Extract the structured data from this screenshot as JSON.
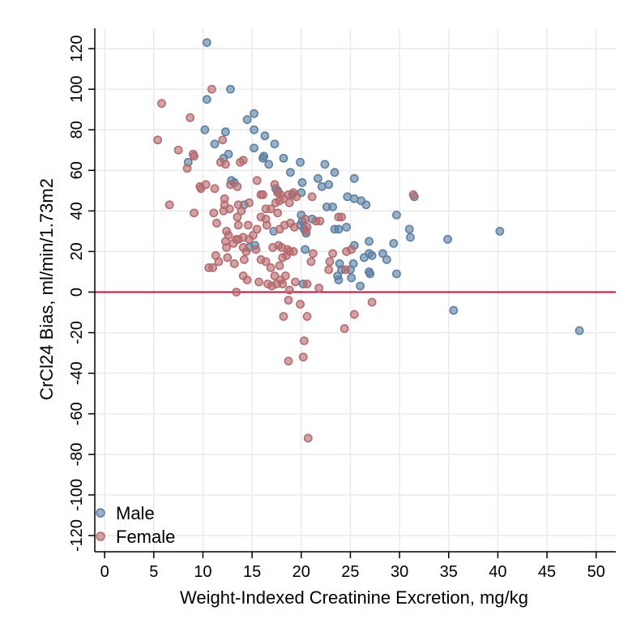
{
  "chart_data": {
    "type": "scatter",
    "xlabel": "Weight-Indexed Creatinine Excretion, mg/kg",
    "ylabel": "CrCl24 Bias, ml/min/1.73m2",
    "xlim": [
      -1,
      52
    ],
    "ylim": [
      -128,
      130
    ],
    "x_ticks": [
      0,
      5,
      10,
      15,
      20,
      25,
      30,
      35,
      40,
      45,
      50
    ],
    "y_ticks": [
      -120,
      -100,
      -80,
      -60,
      -40,
      -20,
      0,
      20,
      40,
      60,
      80,
      100,
      120
    ],
    "grid": true,
    "reference_line": {
      "y": 0,
      "color": "#c0143c"
    },
    "legend": {
      "placement": "bottom-left"
    },
    "series": [
      {
        "name": "Male",
        "color": "#5b7fa3",
        "points": [
          [
            10.4,
            123
          ],
          [
            12.8,
            100
          ],
          [
            10.4,
            95
          ],
          [
            15.2,
            88
          ],
          [
            14.5,
            85
          ],
          [
            15.2,
            80
          ],
          [
            10.2,
            80
          ],
          [
            12.3,
            79
          ],
          [
            16.3,
            77
          ],
          [
            11.2,
            73
          ],
          [
            17.3,
            73
          ],
          [
            15.2,
            71
          ],
          [
            16.2,
            67
          ],
          [
            16.1,
            66
          ],
          [
            12.6,
            68
          ],
          [
            12.1,
            66
          ],
          [
            18.2,
            66
          ],
          [
            8.5,
            64
          ],
          [
            16.7,
            63
          ],
          [
            19.9,
            64
          ],
          [
            22.4,
            63
          ],
          [
            23.4,
            59
          ],
          [
            18.9,
            59
          ],
          [
            12.9,
            55
          ],
          [
            21.7,
            56
          ],
          [
            25.4,
            56
          ],
          [
            13.2,
            54
          ],
          [
            20.1,
            54
          ],
          [
            22.1,
            52
          ],
          [
            22.8,
            53
          ],
          [
            17.4,
            51
          ],
          [
            17.6,
            50
          ],
          [
            19.1,
            48
          ],
          [
            20.0,
            49
          ],
          [
            24.7,
            47
          ],
          [
            25.4,
            46
          ],
          [
            26.1,
            45
          ],
          [
            26.6,
            43
          ],
          [
            22.6,
            42
          ],
          [
            23.2,
            42
          ],
          [
            29.7,
            38
          ],
          [
            20.0,
            38
          ],
          [
            20.1,
            35
          ],
          [
            21.1,
            36
          ],
          [
            23.8,
            31
          ],
          [
            23.4,
            31
          ],
          [
            31.0,
            31
          ],
          [
            19.9,
            33
          ],
          [
            20.3,
            31
          ],
          [
            31.1,
            27
          ],
          [
            34.9,
            26
          ],
          [
            40.2,
            30
          ],
          [
            24.6,
            32
          ],
          [
            25.4,
            23
          ],
          [
            26.9,
            25
          ],
          [
            29.4,
            24
          ],
          [
            20.4,
            21
          ],
          [
            14.7,
            22
          ],
          [
            15.3,
            23
          ],
          [
            26.4,
            17
          ],
          [
            26.9,
            19
          ],
          [
            28.3,
            19
          ],
          [
            28.7,
            16
          ],
          [
            27.2,
            18
          ],
          [
            23.9,
            14
          ],
          [
            25.3,
            14
          ],
          [
            26.9,
            10
          ],
          [
            24.1,
            11
          ],
          [
            25.0,
            11
          ],
          [
            23.7,
            8
          ],
          [
            23.8,
            6
          ],
          [
            25.1,
            7
          ],
          [
            26.0,
            3
          ],
          [
            27.0,
            9
          ],
          [
            29.7,
            9
          ],
          [
            20.2,
            4
          ],
          [
            35.5,
            -9
          ],
          [
            48.3,
            -19
          ],
          [
            31.5,
            47
          ],
          [
            14.2,
            43
          ],
          [
            17.2,
            30
          ],
          [
            20.5,
            29
          ]
        ]
      },
      {
        "name": "Female",
        "color": "#b56a6e",
        "points": [
          [
            5.8,
            93
          ],
          [
            10.9,
            100
          ],
          [
            5.4,
            75
          ],
          [
            8.7,
            86
          ],
          [
            7.5,
            70
          ],
          [
            12.0,
            75
          ],
          [
            9.1,
            67
          ],
          [
            9.0,
            68
          ],
          [
            8.4,
            61
          ],
          [
            11.8,
            64
          ],
          [
            12.3,
            63
          ],
          [
            13.8,
            64
          ],
          [
            14.1,
            65
          ],
          [
            15.5,
            55
          ],
          [
            9.7,
            52
          ],
          [
            10.3,
            53
          ],
          [
            9.8,
            51
          ],
          [
            11.2,
            51
          ],
          [
            12.8,
            53
          ],
          [
            13.5,
            52
          ],
          [
            17.3,
            53
          ],
          [
            17.6,
            49
          ],
          [
            17.9,
            48
          ],
          [
            18.7,
            48
          ],
          [
            19.2,
            49
          ],
          [
            19.5,
            47
          ],
          [
            21.1,
            47
          ],
          [
            31.4,
            48
          ],
          [
            15.9,
            48
          ],
          [
            16.1,
            48
          ],
          [
            12.2,
            46
          ],
          [
            14.7,
            44
          ],
          [
            12.2,
            43
          ],
          [
            6.6,
            43
          ],
          [
            12.1,
            40
          ],
          [
            12.7,
            41
          ],
          [
            13.6,
            43
          ],
          [
            13.9,
            40
          ],
          [
            16.4,
            41
          ],
          [
            16.9,
            41
          ],
          [
            17.4,
            44
          ],
          [
            17.8,
            45
          ],
          [
            18.2,
            46
          ],
          [
            18.8,
            44
          ],
          [
            11.1,
            39
          ],
          [
            9.1,
            39
          ],
          [
            13.5,
            37
          ],
          [
            15.9,
            37
          ],
          [
            16.4,
            36
          ],
          [
            17.6,
            39
          ],
          [
            21.5,
            35
          ],
          [
            21.9,
            35
          ],
          [
            23.8,
            37
          ],
          [
            24.1,
            37
          ],
          [
            20.4,
            36
          ],
          [
            11.4,
            34
          ],
          [
            13.6,
            33
          ],
          [
            14.6,
            33
          ],
          [
            16.5,
            33
          ],
          [
            17.8,
            31
          ],
          [
            18.3,
            33
          ],
          [
            18.9,
            34
          ],
          [
            19.3,
            32
          ],
          [
            12.4,
            30
          ],
          [
            12.6,
            28
          ],
          [
            13.4,
            26
          ],
          [
            14.1,
            27
          ],
          [
            15.1,
            28
          ],
          [
            15.5,
            31
          ],
          [
            20.6,
            32
          ],
          [
            20.5,
            30
          ],
          [
            12.3,
            25
          ],
          [
            13.1,
            24
          ],
          [
            13.6,
            26
          ],
          [
            14.7,
            26
          ],
          [
            12.4,
            22
          ],
          [
            14.1,
            22
          ],
          [
            14.4,
            20
          ],
          [
            15.4,
            21
          ],
          [
            17.1,
            22
          ],
          [
            17.7,
            23
          ],
          [
            18.0,
            22
          ],
          [
            18.6,
            21
          ],
          [
            18.8,
            20
          ],
          [
            19.2,
            20
          ],
          [
            21.2,
            19
          ],
          [
            23.2,
            19
          ],
          [
            24.6,
            20
          ],
          [
            25.1,
            21
          ],
          [
            11.3,
            18
          ],
          [
            11.6,
            15
          ],
          [
            12.5,
            17
          ],
          [
            14.2,
            16
          ],
          [
            15.9,
            16
          ],
          [
            16.4,
            15
          ],
          [
            18.1,
            17
          ],
          [
            18.5,
            18
          ],
          [
            16.9,
            12
          ],
          [
            17.8,
            13
          ],
          [
            21.0,
            15
          ],
          [
            22.9,
            15
          ],
          [
            10.6,
            12
          ],
          [
            11.0,
            12
          ],
          [
            13.2,
            14
          ],
          [
            18.4,
            8
          ],
          [
            17.3,
            8
          ],
          [
            14.1,
            8
          ],
          [
            14.5,
            6
          ],
          [
            15.7,
            5
          ],
          [
            17.0,
            3
          ],
          [
            17.5,
            4
          ],
          [
            17.9,
            6
          ],
          [
            16.6,
            4
          ],
          [
            18.1,
            4
          ],
          [
            19.4,
            5
          ],
          [
            20.6,
            4
          ],
          [
            21.8,
            2
          ],
          [
            22.8,
            11
          ],
          [
            24.5,
            11
          ],
          [
            13.4,
            0
          ],
          [
            18.8,
            1
          ],
          [
            18.7,
            -4
          ],
          [
            19.9,
            -6
          ],
          [
            20.6,
            -12
          ],
          [
            25.4,
            -11
          ],
          [
            27.2,
            -5
          ],
          [
            18.2,
            -12
          ],
          [
            24.4,
            -18
          ],
          [
            20.3,
            -24
          ],
          [
            20.2,
            -32
          ],
          [
            18.7,
            -34
          ],
          [
            20.7,
            -72
          ]
        ]
      }
    ]
  }
}
